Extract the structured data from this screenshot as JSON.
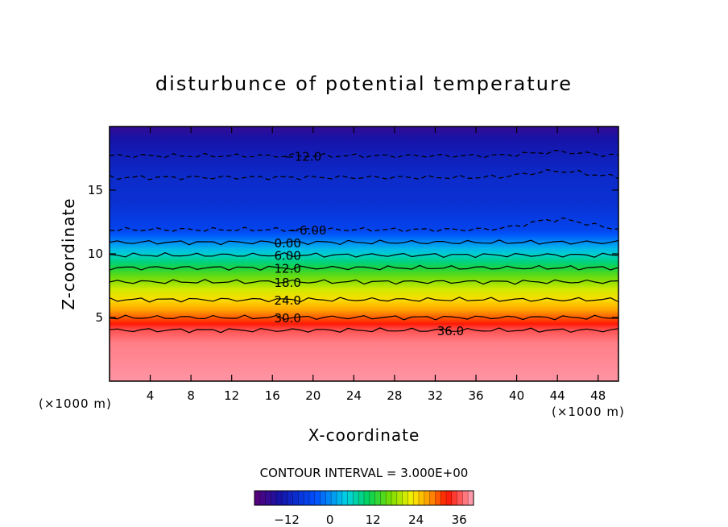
{
  "chart_data": {
    "type": "heatmap",
    "title": "disturbunce of potential temperature",
    "xlabel": "X-coordinate",
    "ylabel": "Z-coordinate",
    "x_unit": "(×1000 m)",
    "y_unit": "(×1000 m)",
    "xlim": [
      0,
      50
    ],
    "ylim": [
      0,
      20
    ],
    "x_ticks": [
      4,
      8,
      12,
      16,
      20,
      24,
      28,
      32,
      36,
      40,
      44,
      48
    ],
    "y_ticks": [
      5,
      10,
      15
    ],
    "contour_interval_text": "CONTOUR INTERVAL = 3.000E+00",
    "colorbar": {
      "min": -21,
      "max": 40,
      "ticks": [
        -12,
        0,
        12,
        24,
        36
      ],
      "tick_labels": [
        "−12",
        "0",
        "12",
        "24",
        "36"
      ]
    },
    "profile": [
      {
        "z": 0.0,
        "value": 39
      },
      {
        "z": 3.0,
        "value": 38
      },
      {
        "z": 4.0,
        "value": 36
      },
      {
        "z": 4.5,
        "value": 33
      },
      {
        "z": 5.0,
        "value": 30
      },
      {
        "z": 5.6,
        "value": 27
      },
      {
        "z": 6.4,
        "value": 24
      },
      {
        "z": 7.2,
        "value": 21
      },
      {
        "z": 7.8,
        "value": 18
      },
      {
        "z": 8.4,
        "value": 15
      },
      {
        "z": 8.9,
        "value": 12
      },
      {
        "z": 9.4,
        "value": 9
      },
      {
        "z": 9.9,
        "value": 6
      },
      {
        "z": 10.4,
        "value": 3
      },
      {
        "z": 10.9,
        "value": 0
      },
      {
        "z": 11.4,
        "value": -3
      },
      {
        "z": 11.9,
        "value": -6
      },
      {
        "z": 13.9,
        "value": -9
      },
      {
        "z": 16.0,
        "value": -10
      },
      {
        "z": 17.7,
        "value": -12
      },
      {
        "z": 19.0,
        "value": -14
      },
      {
        "z": 20.0,
        "value": -17
      }
    ],
    "contours": [
      {
        "label": "−12.0",
        "z": 17.7,
        "label_x": 19,
        "dashed": true,
        "bump": 0.3
      },
      {
        "label": "",
        "z": 16.0,
        "label_x": null,
        "dashed": true,
        "bump": 0.5
      },
      {
        "label": "−6.00",
        "z": 11.9,
        "label_x": 19.5,
        "dashed": true,
        "bump": 0.8
      },
      {
        "label": "0.00",
        "z": 10.9,
        "label_x": 17.5,
        "dashed": false,
        "bump": 0
      },
      {
        "label": "6.00",
        "z": 9.9,
        "label_x": 17.5,
        "dashed": false,
        "bump": 0
      },
      {
        "label": "12.0",
        "z": 8.9,
        "label_x": 17.5,
        "dashed": false,
        "bump": 0
      },
      {
        "label": "18.0",
        "z": 7.8,
        "label_x": 17.5,
        "dashed": false,
        "bump": 0
      },
      {
        "label": "24.0",
        "z": 6.4,
        "label_x": 17.5,
        "dashed": false,
        "bump": 0
      },
      {
        "label": "30.0",
        "z": 5.0,
        "label_x": 17.5,
        "dashed": false,
        "bump": 0
      },
      {
        "label": "36.0",
        "z": 4.0,
        "label_x": 33.5,
        "dashed": false,
        "bump": 0
      }
    ]
  }
}
